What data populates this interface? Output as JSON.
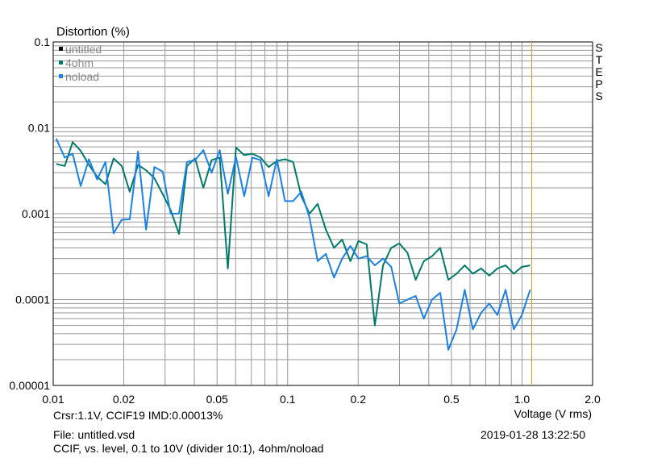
{
  "chart_data": {
    "type": "line",
    "ylabel": "Distortion (%)",
    "xlabel": "Voltage (V rms)",
    "x_scale": "log",
    "y_scale": "log",
    "xlim": [
      0.01,
      2.0
    ],
    "ylim": [
      1e-05,
      0.1
    ],
    "grid": true,
    "legend_position": "top-left",
    "x_ticks": [
      {
        "value": 0.01,
        "label": "0.01"
      },
      {
        "value": 0.02,
        "label": "0.02"
      },
      {
        "value": 0.05,
        "label": "0.05"
      },
      {
        "value": 0.1,
        "label": "0.1"
      },
      {
        "value": 0.2,
        "label": "0.2"
      },
      {
        "value": 0.5,
        "label": "0.5"
      },
      {
        "value": 1.0,
        "label": "1.0"
      },
      {
        "value": 2.0,
        "label": "2.0"
      }
    ],
    "y_ticks": [
      {
        "value": 0.1,
        "label": "0.1"
      },
      {
        "value": 0.01,
        "label": "0.01"
      },
      {
        "value": 0.001,
        "label": "0.001"
      },
      {
        "value": 0.0001,
        "label": "0.0001"
      },
      {
        "value": 1e-05,
        "label": "0.00001"
      }
    ],
    "cursor_x": 1.1,
    "series": [
      {
        "name": "untitled",
        "color": "#000000",
        "x": [],
        "y": []
      },
      {
        "name": "4ohm",
        "color": "#007a6a",
        "x": [
          0.0103,
          0.0112,
          0.0121,
          0.0131,
          0.0142,
          0.0154,
          0.0167,
          0.0181,
          0.0196,
          0.0212,
          0.023,
          0.0249,
          0.027,
          0.0293,
          0.0317,
          0.0344,
          0.0372,
          0.0403,
          0.0437,
          0.0474,
          0.0513,
          0.0556,
          0.0602,
          0.0653,
          0.0707,
          0.0766,
          0.083,
          0.09,
          0.0975,
          0.1056,
          0.1144,
          0.124,
          0.1343,
          0.1456,
          0.1577,
          0.1709,
          0.1852,
          0.2006,
          0.2174,
          0.2356,
          0.2553,
          0.2766,
          0.2997,
          0.3247,
          0.3519,
          0.3813,
          0.4131,
          0.4477,
          0.4851,
          0.5256,
          0.5695,
          0.6171,
          0.6687,
          0.7246,
          0.7851,
          0.8507,
          0.9218,
          0.9988,
          1.0823
        ],
        "y": [
          0.0038,
          0.0036,
          0.0068,
          0.0054,
          0.0037,
          0.0027,
          0.0022,
          0.0044,
          0.0036,
          0.0018,
          0.0037,
          0.0032,
          0.0026,
          0.0017,
          0.0011,
          0.00058,
          0.0036,
          0.0044,
          0.002,
          0.0042,
          0.0045,
          0.00023,
          0.0059,
          0.0048,
          0.005,
          0.0045,
          0.0035,
          0.0041,
          0.0043,
          0.004,
          0.0016,
          0.001,
          0.0013,
          0.00065,
          0.0004,
          0.0005,
          0.00028,
          0.00048,
          0.00044,
          5e-05,
          0.00025,
          0.0004,
          0.00045,
          0.00035,
          0.00017,
          0.00028,
          0.00032,
          0.0004,
          0.00017,
          0.0002,
          0.00025,
          0.0002,
          0.00023,
          0.00019,
          0.00023,
          0.00025,
          0.0002,
          0.00024,
          0.00025
        ]
      },
      {
        "name": "noload",
        "color": "#1a82e6",
        "x": [
          0.0103,
          0.0112,
          0.0121,
          0.0131,
          0.0142,
          0.0154,
          0.0167,
          0.0181,
          0.0196,
          0.0212,
          0.023,
          0.0249,
          0.027,
          0.0293,
          0.0317,
          0.0344,
          0.0372,
          0.0403,
          0.0437,
          0.0474,
          0.0513,
          0.0556,
          0.0602,
          0.0653,
          0.0707,
          0.0766,
          0.083,
          0.09,
          0.0975,
          0.1056,
          0.1144,
          0.124,
          0.1343,
          0.1456,
          0.1577,
          0.1709,
          0.1852,
          0.2006,
          0.2174,
          0.2356,
          0.2553,
          0.2766,
          0.2997,
          0.3247,
          0.3519,
          0.3813,
          0.4131,
          0.4477,
          0.4851,
          0.5256,
          0.5695,
          0.6171,
          0.6687,
          0.7246,
          0.7851,
          0.8507,
          0.9218,
          0.9988,
          1.0823
        ],
        "y": [
          0.0075,
          0.0045,
          0.005,
          0.0021,
          0.0043,
          0.0025,
          0.004,
          0.00059,
          0.00085,
          0.00086,
          0.0053,
          0.00065,
          0.0035,
          0.0031,
          0.001,
          0.001,
          0.004,
          0.0042,
          0.0055,
          0.003,
          0.0055,
          0.0017,
          0.0046,
          0.0016,
          0.0045,
          0.0042,
          0.0016,
          0.0043,
          0.0014,
          0.0014,
          0.0018,
          0.0009,
          0.00028,
          0.00034,
          0.00018,
          0.0003,
          0.00042,
          0.0003,
          0.00032,
          0.00025,
          0.0003,
          0.00024,
          9e-05,
          0.0001,
          0.00011,
          6e-05,
          0.0001,
          0.00012,
          2.6e-05,
          4.5e-05,
          0.00013,
          4.5e-05,
          7e-05,
          9e-05,
          6.6e-05,
          0.00013,
          4.5e-05,
          6.6e-05,
          0.00013
        ]
      }
    ]
  },
  "footer": {
    "cursor_readout": "Crsr:1.1V, CCIF19 IMD:0.00013%",
    "file": "File: untitled.vsd",
    "description": "CCIF, vs. level, 0.1 to 10V (divider 10:1), 4ohm/noload",
    "timestamp": "2019-01-28  13:22:50"
  },
  "sidebar": {
    "steps_label": "STEPS"
  }
}
